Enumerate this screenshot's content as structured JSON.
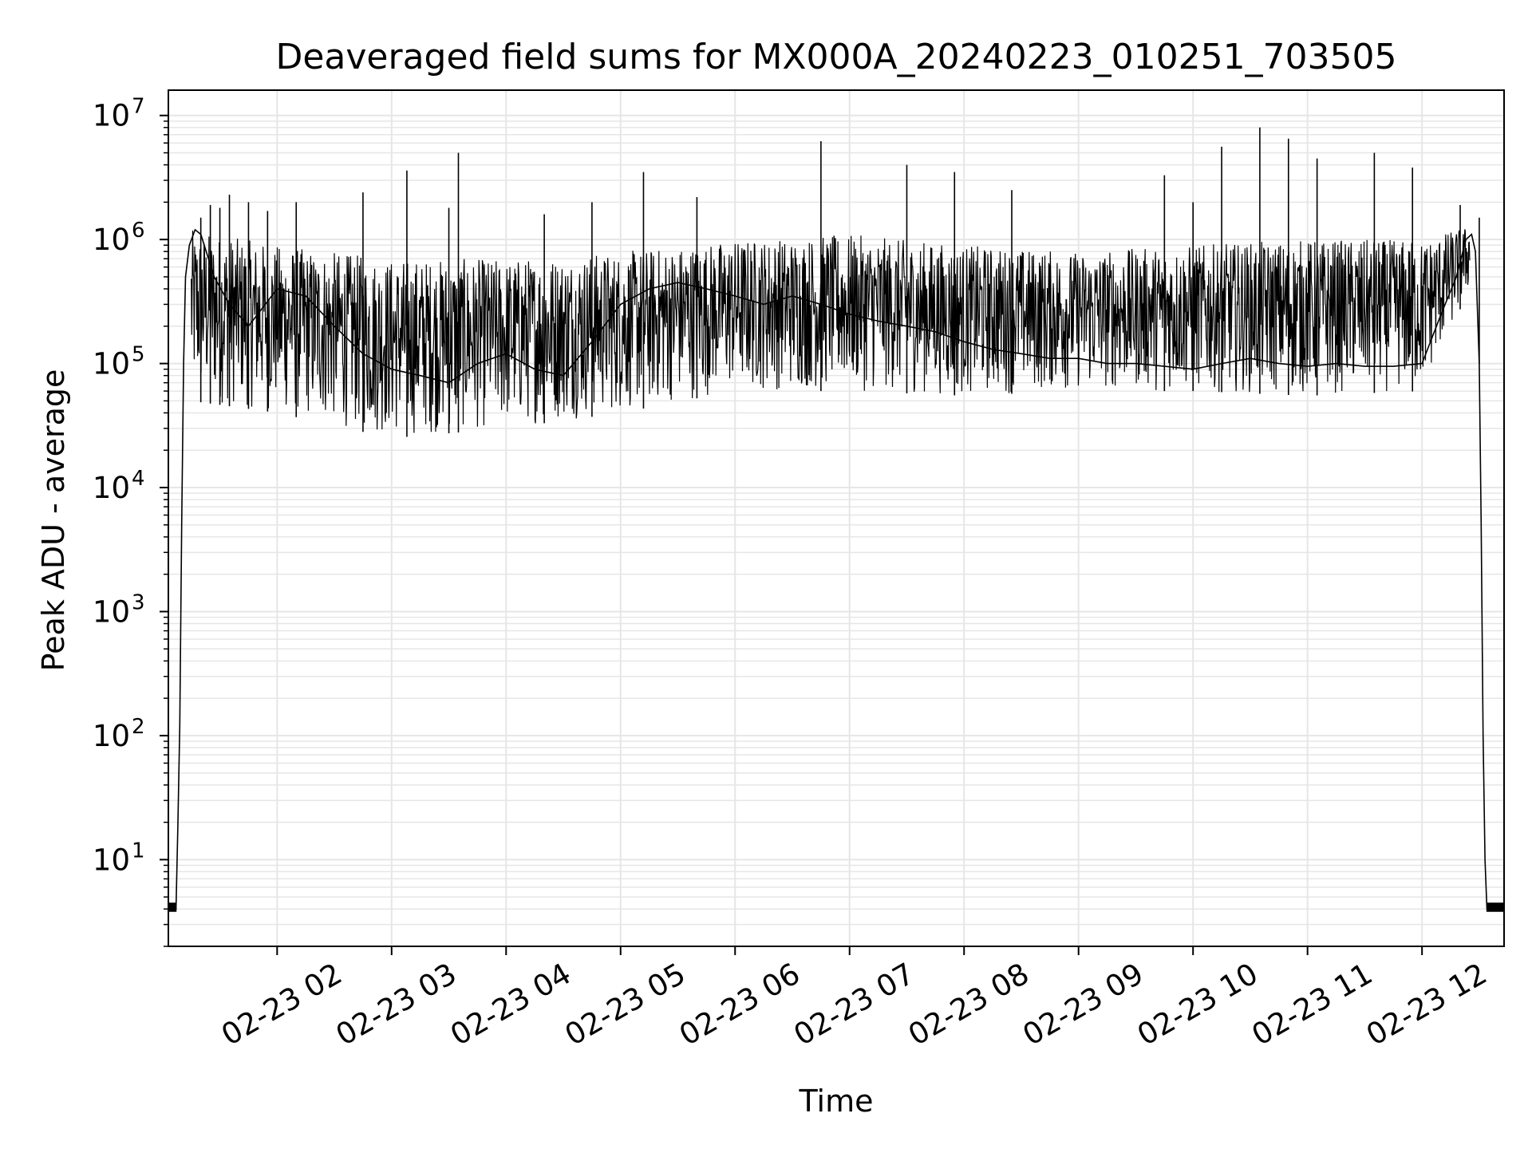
{
  "chart_data": {
    "type": "line",
    "title": "Deaveraged field sums for MX000A_20240223_010251_703505",
    "xlabel": "Time",
    "ylabel": "Peak ADU - average",
    "yscale": "log",
    "ylim": [
      2,
      16000000
    ],
    "xlim": [
      "2024-02-23 01:03",
      "2024-02-23 12:43"
    ],
    "grid": true,
    "grid_minor": true,
    "line_color": "#000000",
    "grid_color": "#e6e6e6",
    "x_ticks": [
      {
        "value": "2024-02-23 02:00",
        "label": "02-23 02"
      },
      {
        "value": "2024-02-23 03:00",
        "label": "02-23 03"
      },
      {
        "value": "2024-02-23 04:00",
        "label": "02-23 04"
      },
      {
        "value": "2024-02-23 05:00",
        "label": "02-23 05"
      },
      {
        "value": "2024-02-23 06:00",
        "label": "02-23 06"
      },
      {
        "value": "2024-02-23 07:00",
        "label": "02-23 07"
      },
      {
        "value": "2024-02-23 08:00",
        "label": "02-23 08"
      },
      {
        "value": "2024-02-23 09:00",
        "label": "02-23 09"
      },
      {
        "value": "2024-02-23 10:00",
        "label": "02-23 10"
      },
      {
        "value": "2024-02-23 11:00",
        "label": "02-23 11"
      },
      {
        "value": "2024-02-23 12:00",
        "label": "02-23 12"
      }
    ],
    "y_ticks": [
      {
        "value": 10,
        "base": "10",
        "exp": "1"
      },
      {
        "value": 100,
        "base": "10",
        "exp": "2"
      },
      {
        "value": 1000,
        "base": "10",
        "exp": "3"
      },
      {
        "value": 10000,
        "base": "10",
        "exp": "4"
      },
      {
        "value": 100000,
        "base": "10",
        "exp": "5"
      },
      {
        "value": 1000000,
        "base": "10",
        "exp": "6"
      },
      {
        "value": 10000000,
        "base": "10",
        "exp": "7"
      }
    ],
    "series": [
      {
        "x": [
          "2024-02-23 01:03",
          "2024-02-23 01:07",
          "2024-02-23 01:08",
          "2024-02-23 01:09",
          "2024-02-23 01:10",
          "2024-02-23 01:11",
          "2024-02-23 01:12",
          "2024-02-23 01:14",
          "2024-02-23 01:17",
          "2024-02-23 01:20",
          "2024-02-23 01:27",
          "2024-02-23 01:35",
          "2024-02-23 01:45",
          "2024-02-23 02:00",
          "2024-02-23 02:15",
          "2024-02-23 02:30",
          "2024-02-23 02:45",
          "2024-02-23 03:00",
          "2024-02-23 03:15",
          "2024-02-23 03:30",
          "2024-02-23 03:45",
          "2024-02-23 04:00",
          "2024-02-23 04:15",
          "2024-02-23 04:30",
          "2024-02-23 04:45",
          "2024-02-23 05:00",
          "2024-02-23 05:15",
          "2024-02-23 05:30",
          "2024-02-23 05:45",
          "2024-02-23 06:00",
          "2024-02-23 06:15",
          "2024-02-23 06:30",
          "2024-02-23 06:45",
          "2024-02-23 07:00",
          "2024-02-23 07:15",
          "2024-02-23 07:30",
          "2024-02-23 07:45",
          "2024-02-23 08:00",
          "2024-02-23 08:15",
          "2024-02-23 08:30",
          "2024-02-23 08:45",
          "2024-02-23 09:00",
          "2024-02-23 09:15",
          "2024-02-23 09:30",
          "2024-02-23 09:45",
          "2024-02-23 10:00",
          "2024-02-23 10:15",
          "2024-02-23 10:30",
          "2024-02-23 10:45",
          "2024-02-23 11:00",
          "2024-02-23 11:15",
          "2024-02-23 11:30",
          "2024-02-23 11:45",
          "2024-02-23 12:00",
          "2024-02-23 12:10",
          "2024-02-23 12:18",
          "2024-02-23 12:23",
          "2024-02-23 12:26",
          "2024-02-23 12:28",
          "2024-02-23 12:30",
          "2024-02-23 12:31",
          "2024-02-23 12:32",
          "2024-02-23 12:33",
          "2024-02-23 12:34",
          "2024-02-23 12:43"
        ],
        "y": [
          4,
          4,
          20,
          120,
          5000,
          100000,
          500000,
          900000,
          1200000,
          1100000,
          500000,
          300000,
          200000,
          400000,
          350000,
          200000,
          120000,
          90000,
          80000,
          70000,
          100000,
          120000,
          90000,
          80000,
          150000,
          300000,
          400000,
          450000,
          400000,
          350000,
          300000,
          350000,
          300000,
          250000,
          220000,
          200000,
          180000,
          150000,
          130000,
          120000,
          110000,
          110000,
          100000,
          100000,
          95000,
          90000,
          100000,
          110000,
          100000,
          95000,
          100000,
          95000,
          95000,
          100000,
          250000,
          500000,
          1000000,
          1100000,
          800000,
          100000,
          5000,
          100,
          10,
          4,
          4
        ]
      }
    ],
    "spikes": [
      {
        "x": "2024-02-23 01:20",
        "y": 1500000
      },
      {
        "x": "2024-02-23 01:25",
        "y": 1900000
      },
      {
        "x": "2024-02-23 01:30",
        "y": 1800000
      },
      {
        "x": "2024-02-23 01:35",
        "y": 2300000
      },
      {
        "x": "2024-02-23 01:45",
        "y": 2000000
      },
      {
        "x": "2024-02-23 01:55",
        "y": 1700000
      },
      {
        "x": "2024-02-23 02:10",
        "y": 2000000
      },
      {
        "x": "2024-02-23 02:45",
        "y": 2400000
      },
      {
        "x": "2024-02-23 03:08",
        "y": 3600000
      },
      {
        "x": "2024-02-23 03:30",
        "y": 1800000
      },
      {
        "x": "2024-02-23 03:35",
        "y": 5000000
      },
      {
        "x": "2024-02-23 04:20",
        "y": 1600000
      },
      {
        "x": "2024-02-23 04:45",
        "y": 2000000
      },
      {
        "x": "2024-02-23 05:12",
        "y": 3500000
      },
      {
        "x": "2024-02-23 05:40",
        "y": 2200000
      },
      {
        "x": "2024-02-23 06:45",
        "y": 6200000
      },
      {
        "x": "2024-02-23 07:30",
        "y": 4000000
      },
      {
        "x": "2024-02-23 07:55",
        "y": 3500000
      },
      {
        "x": "2024-02-23 08:25",
        "y": 2500000
      },
      {
        "x": "2024-02-23 09:45",
        "y": 3300000
      },
      {
        "x": "2024-02-23 10:00",
        "y": 2000000
      },
      {
        "x": "2024-02-23 10:15",
        "y": 5600000
      },
      {
        "x": "2024-02-23 10:35",
        "y": 8000000
      },
      {
        "x": "2024-02-23 10:50",
        "y": 6500000
      },
      {
        "x": "2024-02-23 11:05",
        "y": 4500000
      },
      {
        "x": "2024-02-23 11:35",
        "y": 5000000
      },
      {
        "x": "2024-02-23 11:55",
        "y": 3800000
      },
      {
        "x": "2024-02-23 12:20",
        "y": 1900000
      },
      {
        "x": "2024-02-23 12:30",
        "y": 1500000
      }
    ],
    "noise_band": [
      {
        "x": "2024-02-23 01:15",
        "low": 50000,
        "high": 1200000
      },
      {
        "x": "2024-02-23 02:00",
        "low": 40000,
        "high": 900000
      },
      {
        "x": "2024-02-23 03:00",
        "low": 25000,
        "high": 700000
      },
      {
        "x": "2024-02-23 04:00",
        "low": 30000,
        "high": 700000
      },
      {
        "x": "2024-02-23 05:00",
        "low": 40000,
        "high": 800000
      },
      {
        "x": "2024-02-23 06:00",
        "low": 60000,
        "high": 1000000
      },
      {
        "x": "2024-02-23 07:00",
        "low": 60000,
        "high": 1100000
      },
      {
        "x": "2024-02-23 08:00",
        "low": 55000,
        "high": 900000
      },
      {
        "x": "2024-02-23 09:00",
        "low": 60000,
        "high": 800000
      },
      {
        "x": "2024-02-23 10:00",
        "low": 60000,
        "high": 900000
      },
      {
        "x": "2024-02-23 11:00",
        "low": 55000,
        "high": 1000000
      },
      {
        "x": "2024-02-23 12:00",
        "low": 60000,
        "high": 1000000
      },
      {
        "x": "2024-02-23 12:25",
        "low": 400000,
        "high": 1300000
      }
    ]
  }
}
